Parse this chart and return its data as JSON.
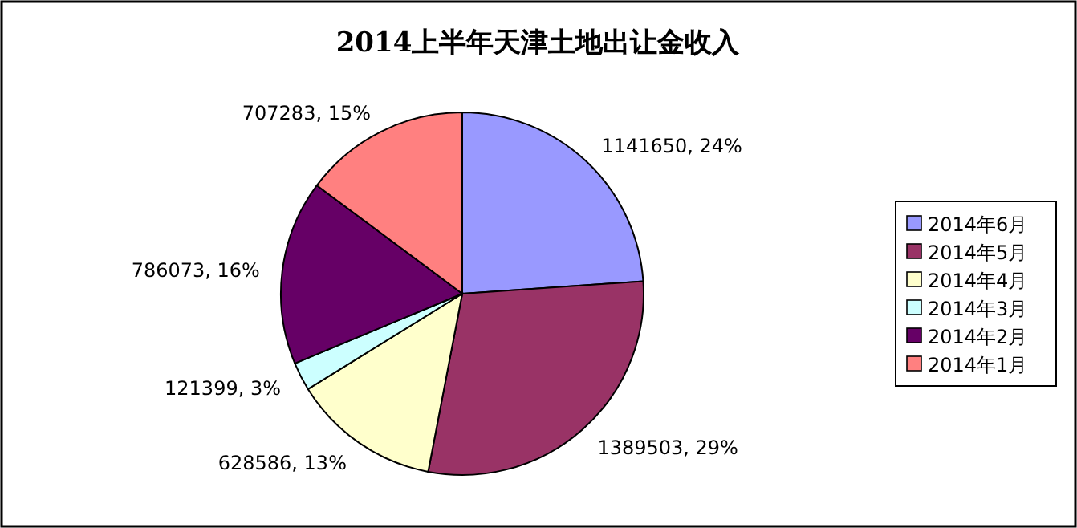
{
  "chart_data": {
    "type": "pie",
    "title": "2014上半年天津土地出让金收入",
    "categories": [
      "2014年6月",
      "2014年5月",
      "2014年4月",
      "2014年3月",
      "2014年2月",
      "2014年1月"
    ],
    "values": [
      1141650,
      1389503,
      628586,
      121399,
      786073,
      707283
    ],
    "value_labels": [
      "1141650, 24%",
      "1389503, 29%",
      "628586, 13%",
      "121399, 3%",
      "786073, 16%",
      "707283, 15%"
    ],
    "colors": [
      "#9999ff",
      "#993366",
      "#ffffcc",
      "#ccffff",
      "#660066",
      "#ff8080"
    ],
    "legend": "right"
  }
}
